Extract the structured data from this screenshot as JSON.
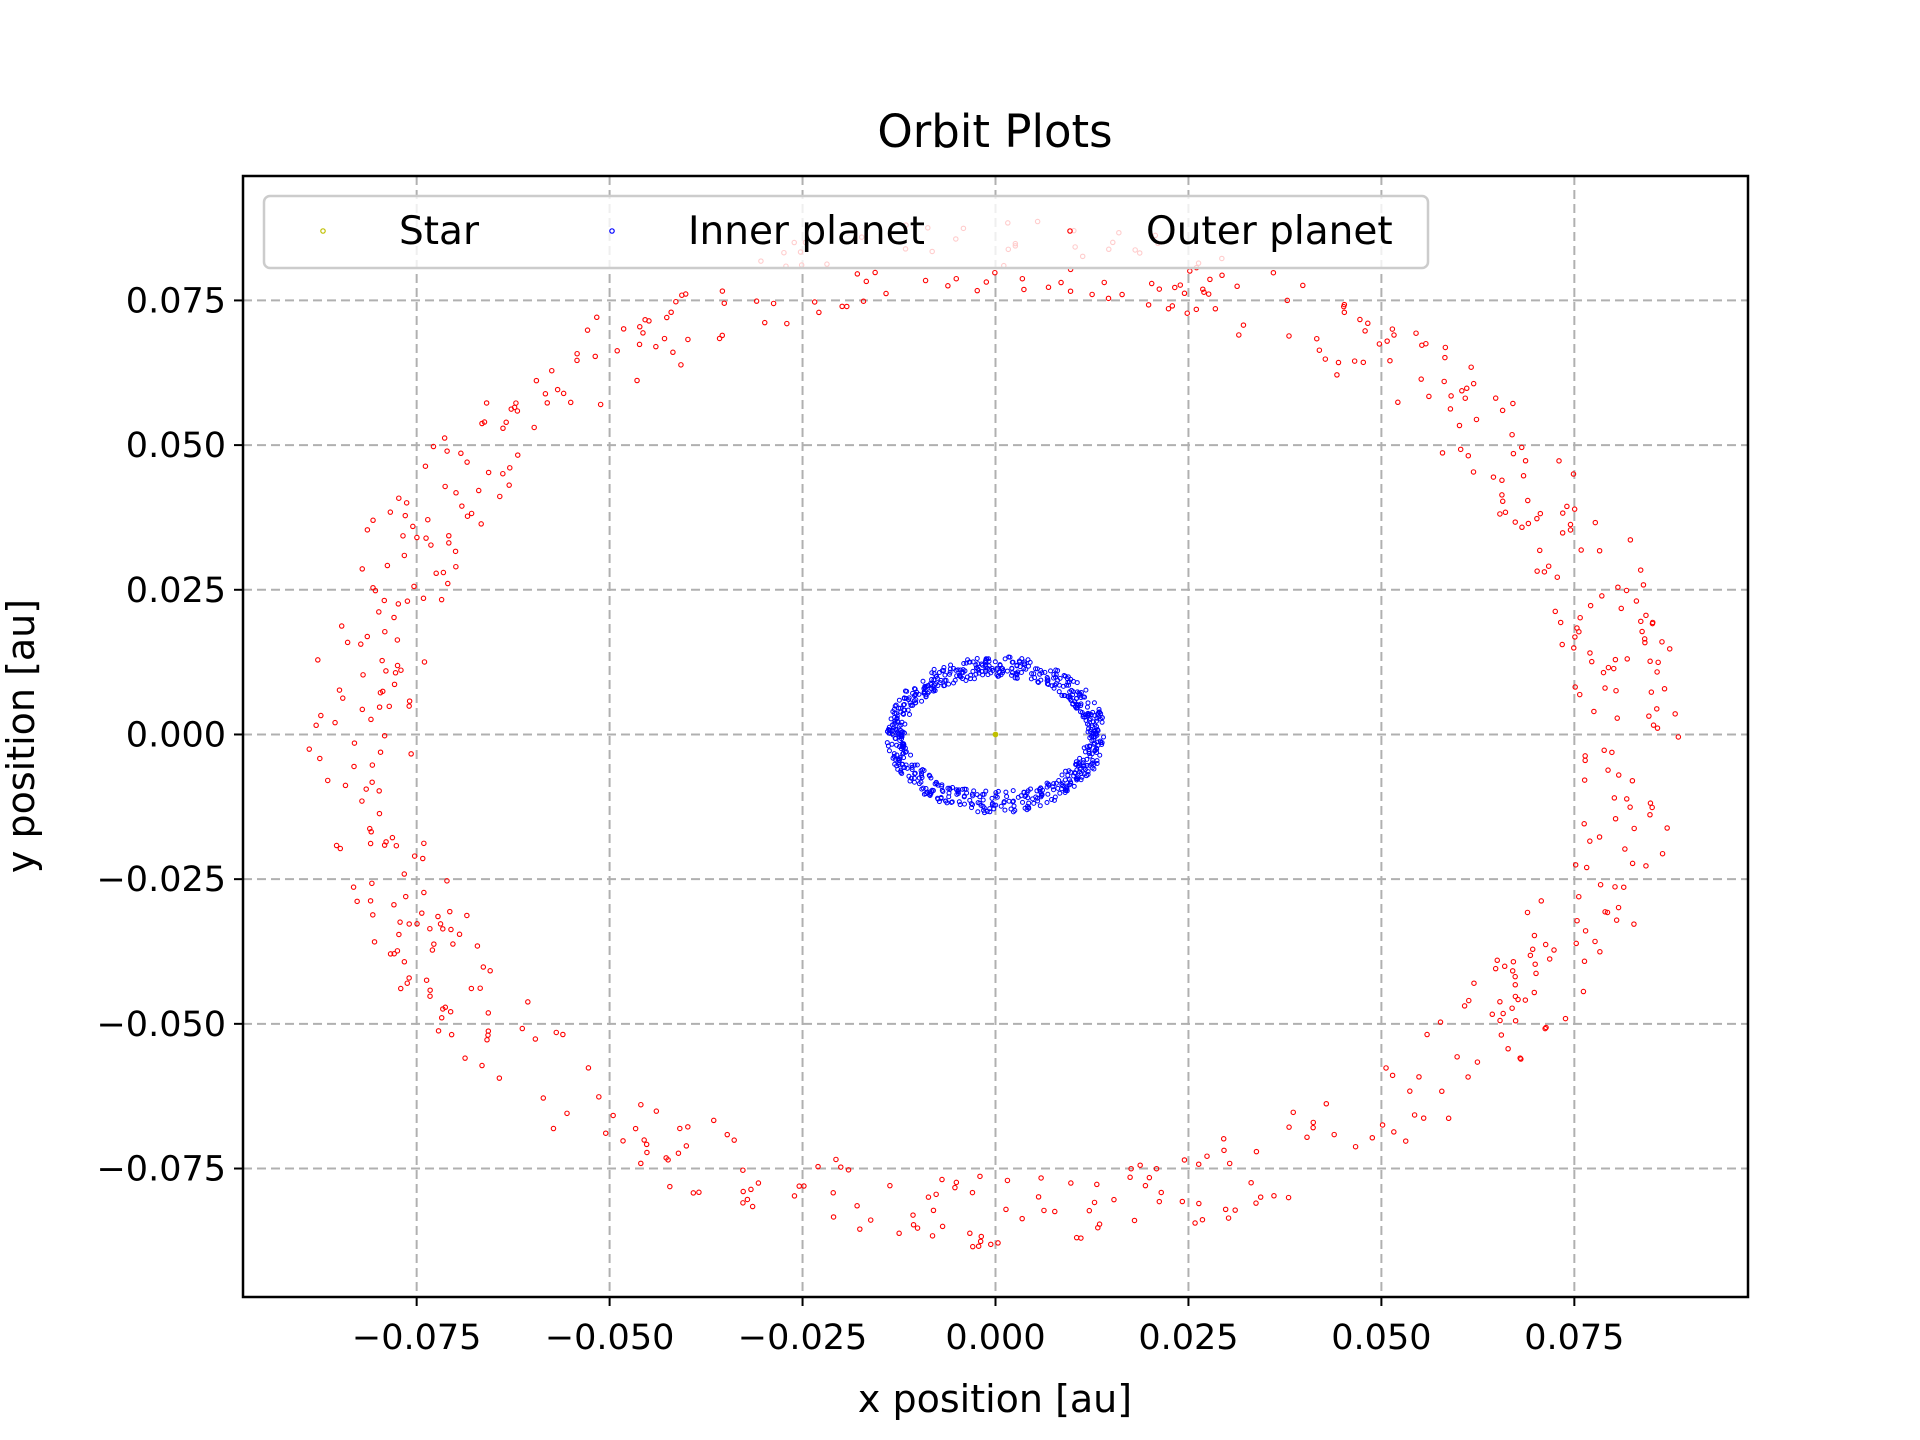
{
  "chart_data": {
    "type": "scatter",
    "title": "Orbit Plots",
    "xlabel": "x position [au]",
    "ylabel": "y position [au]",
    "xlim": [
      -0.0975,
      0.0975
    ],
    "ylim": [
      -0.0972,
      0.0965
    ],
    "xticks": [
      -0.075,
      -0.05,
      -0.025,
      0.0,
      0.025,
      0.05,
      0.075
    ],
    "yticks": [
      -0.075,
      -0.05,
      -0.025,
      0.0,
      0.025,
      0.05,
      0.075
    ],
    "xtick_labels": [
      "−0.075",
      "−0.050",
      "−0.025",
      "0.000",
      "0.025",
      "0.050",
      "0.075"
    ],
    "ytick_labels": [
      "−0.075",
      "−0.050",
      "−0.025",
      "0.000",
      "0.025",
      "0.050",
      "0.075"
    ],
    "grid": true,
    "legend_position": "top",
    "series": [
      {
        "name": "Star",
        "color": "#bfbf00",
        "marker": "circle",
        "points": [
          [
            0.0,
            0.0
          ]
        ]
      },
      {
        "name": "Inner planet",
        "color": "#0000ff",
        "marker": "circle",
        "orbit": {
          "a_min": 0.0118,
          "a_max": 0.0142,
          "b_min": 0.0098,
          "b_max": 0.0136,
          "count": 700
        }
      },
      {
        "name": "Outer planet",
        "color": "#ff0000",
        "marker": "circle",
        "orbit": {
          "a_min": 0.075,
          "a_max": 0.089,
          "b_min": 0.076,
          "b_max": 0.089,
          "count": 640
        }
      }
    ]
  }
}
